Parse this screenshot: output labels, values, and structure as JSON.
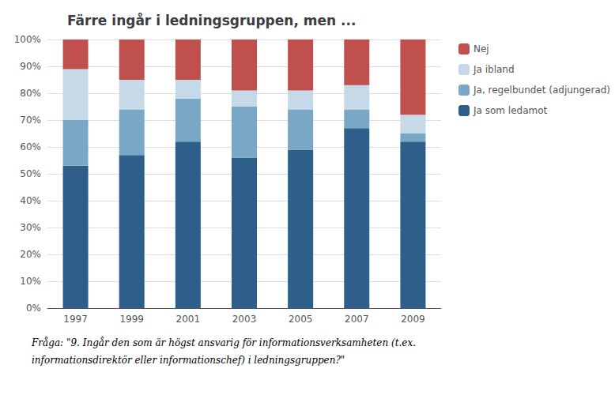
{
  "chart_data": {
    "type": "bar",
    "title": "Färre ingår i ledningsgruppen, men ...",
    "categories": [
      "1997",
      "1999",
      "2001",
      "2003",
      "2005",
      "2007",
      "2009"
    ],
    "series": [
      {
        "name": "Ja som ledamot",
        "color": "#2E5F8A",
        "values": [
          53,
          57,
          62,
          56,
          59,
          67,
          62
        ]
      },
      {
        "name": "Ja, regelbundet (adjungerad)",
        "color": "#7BA7C7",
        "values": [
          17,
          17,
          16,
          19,
          15,
          7,
          3
        ]
      },
      {
        "name": "Ja ibland",
        "color": "#C5D9E8",
        "values": [
          19,
          11,
          7,
          6,
          7,
          9,
          7
        ]
      },
      {
        "name": "Nej",
        "color": "#C0504D",
        "values": [
          11,
          15,
          15,
          19,
          19,
          17,
          28
        ]
      }
    ],
    "stacked": true,
    "ylim": [
      0,
      100
    ],
    "yticks": [
      {
        "value": 0,
        "label": "0%"
      },
      {
        "value": 10,
        "label": "10%"
      },
      {
        "value": 20,
        "label": "20%"
      },
      {
        "value": 30,
        "label": "30%"
      },
      {
        "value": 40,
        "label": "40%"
      },
      {
        "value": 50,
        "label": "50%"
      },
      {
        "value": 60,
        "label": "60%"
      },
      {
        "value": 70,
        "label": "70%"
      },
      {
        "value": 80,
        "label": "80%"
      },
      {
        "value": 90,
        "label": "90%"
      },
      {
        "value": 100,
        "label": "100%"
      }
    ],
    "grid": true,
    "legend": "right",
    "annotations": [
      "Fråga: \"9. Ingår den som är högst ansvarig för informationsverksamheten (t.ex.",
      "informationsdirektör eller informationschef) i ledningsgruppen?\""
    ]
  }
}
